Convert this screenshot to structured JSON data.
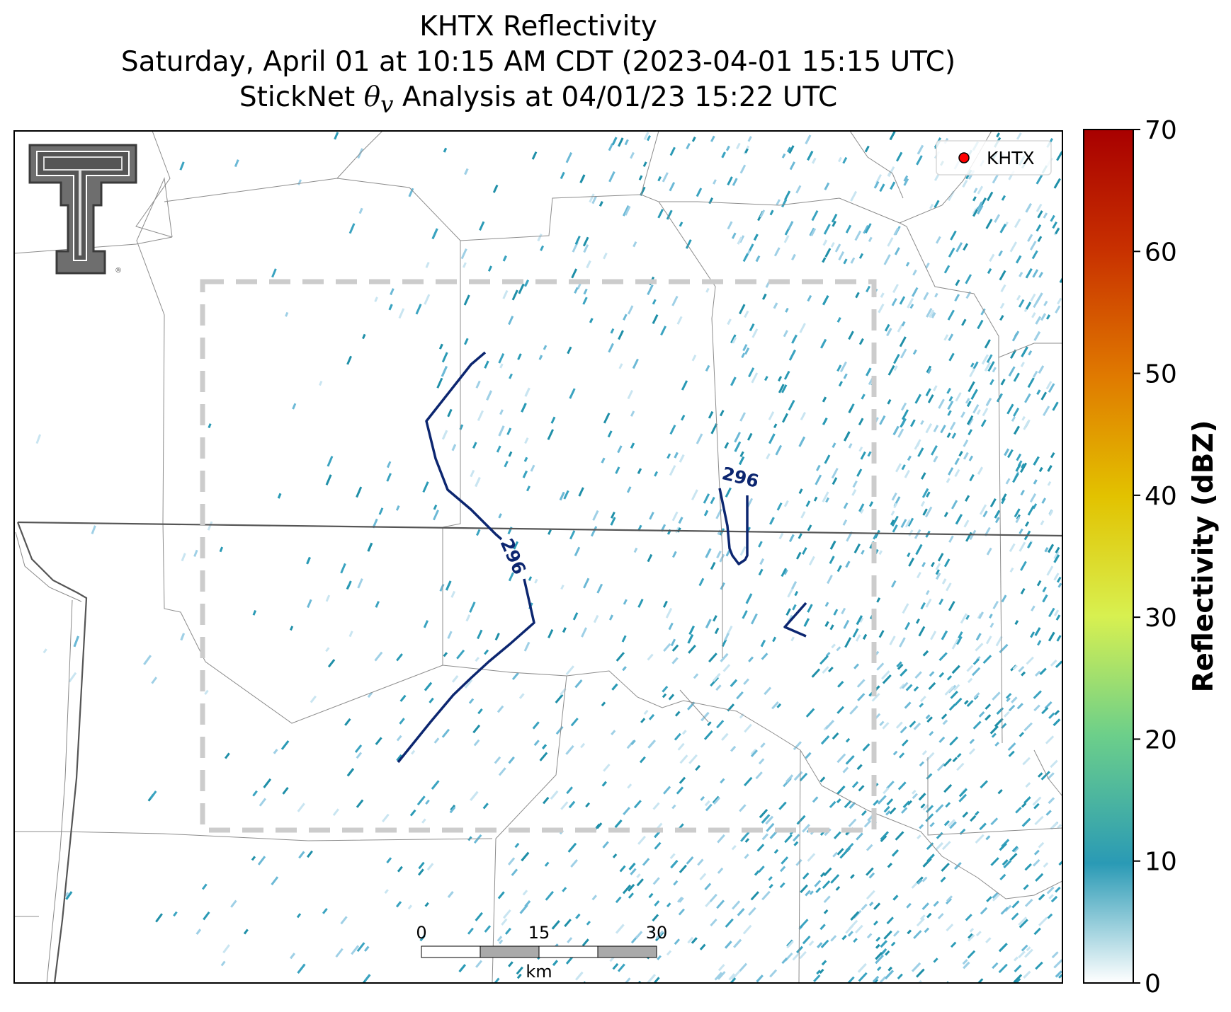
{
  "title": {
    "line1": "KHTX Reflectivity",
    "line2": "Saturday, April 01 at 10:15 AM CDT (2023-04-01 15:15 UTC)",
    "line3_prefix": "StickNet ",
    "line3_symbol": "θ",
    "line3_subscript": "v",
    "line3_suffix": " Analysis at 04/01/23 15:22 UTC"
  },
  "legend": {
    "marker_color": "#ff0000",
    "label": "KHTX"
  },
  "contours": [
    {
      "label": "296"
    },
    {
      "label": "296"
    }
  ],
  "scalebar": {
    "ticks": [
      "0",
      "15",
      "30"
    ],
    "unit": "km"
  },
  "colorbar": {
    "label": "Reflectivity (dBZ)",
    "min": 0,
    "max": 70,
    "ticks": [
      "0",
      "10",
      "20",
      "30",
      "40",
      "50",
      "60",
      "70"
    ],
    "colors": [
      "#ffffff",
      "#2a9ab5",
      "#6ccf8a",
      "#d8f050",
      "#e2c200",
      "#e07a00",
      "#c83000",
      "#a80000"
    ]
  },
  "logo": {
    "name": "texas-tech-double-t-logo",
    "mark": "®"
  },
  "analysis_box": {
    "style": "dashed",
    "color": "#cccccc"
  }
}
